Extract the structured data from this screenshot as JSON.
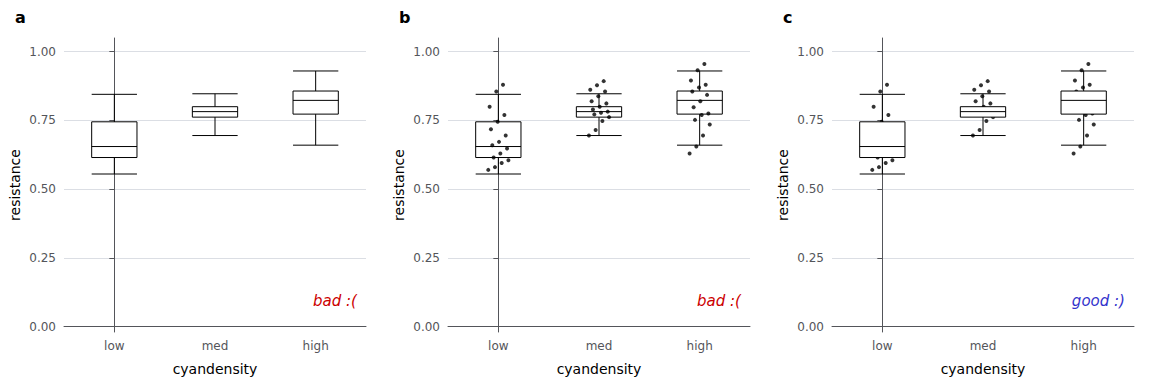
{
  "chart_data": [
    {
      "type": "boxplot",
      "title": "a",
      "categories": [
        "low",
        "med",
        "high"
      ],
      "xlabel": "cyandensity",
      "ylabel": "resistance",
      "ylim": [
        -0.02,
        1.05
      ],
      "yticks": [
        {
          "value": 0.0,
          "label": "0.00"
        },
        {
          "value": 0.25,
          "label": "0.25"
        },
        {
          "value": 0.5,
          "label": "0.50"
        },
        {
          "value": 0.75,
          "label": "0.75"
        },
        {
          "value": 1.0,
          "label": "1.00"
        }
      ],
      "grid": true,
      "series": [
        {
          "type": "boxplot",
          "color": "#ffffff",
          "values": [
            [
              0.555,
              0.615,
              0.655,
              0.745,
              0.845
            ],
            [
              0.695,
              0.762,
              0.782,
              0.8,
              0.847
            ],
            [
              0.66,
              0.773,
              0.823,
              0.857,
              0.93
            ]
          ]
        }
      ],
      "annotations": [
        {
          "text": "bad :(",
          "color": "#cc0000"
        }
      ]
    },
    {
      "type": "boxplot",
      "title": "b",
      "categories": [
        "low",
        "med",
        "high"
      ],
      "xlabel": "cyandensity",
      "ylabel": "resistance",
      "ylim": [
        -0.02,
        1.05
      ],
      "yticks": [
        {
          "value": 0.0,
          "label": "0.00"
        },
        {
          "value": 0.25,
          "label": "0.25"
        },
        {
          "value": 0.5,
          "label": "0.50"
        },
        {
          "value": 0.75,
          "label": "0.75"
        },
        {
          "value": 1.0,
          "label": "1.00"
        }
      ],
      "grid": true,
      "series": [
        {
          "type": "boxplot",
          "color": "#ffffff",
          "values": [
            [
              0.555,
              0.615,
              0.655,
              0.745,
              0.845
            ],
            [
              0.695,
              0.762,
              0.782,
              0.8,
              0.847
            ],
            [
              0.66,
              0.773,
              0.823,
              0.857,
              0.93
            ]
          ]
        },
        {
          "type": "scatter",
          "color": "#000000",
          "values": [
            [
              0.57,
              0.58,
              0.595,
              0.605,
              0.615,
              0.63,
              0.648,
              0.66,
              0.672,
              0.695,
              0.718,
              0.745,
              0.77,
              0.8,
              0.855,
              0.88
            ],
            [
              0.695,
              0.715,
              0.748,
              0.762,
              0.772,
              0.778,
              0.782,
              0.79,
              0.8,
              0.812,
              0.82,
              0.838,
              0.855,
              0.862,
              0.878,
              0.893
            ],
            [
              0.63,
              0.655,
              0.695,
              0.735,
              0.752,
              0.77,
              0.775,
              0.798,
              0.82,
              0.843,
              0.855,
              0.87,
              0.88,
              0.895,
              0.933,
              0.955
            ]
          ]
        }
      ],
      "annotations": [
        {
          "text": "bad :(",
          "color": "#cc0000"
        }
      ]
    },
    {
      "type": "boxplot",
      "title": "c",
      "categories": [
        "low",
        "med",
        "high"
      ],
      "xlabel": "cyandensity",
      "ylabel": "resistance",
      "ylim": [
        -0.02,
        1.05
      ],
      "yticks": [
        {
          "value": 0.0,
          "label": "0.00"
        },
        {
          "value": 0.25,
          "label": "0.25"
        },
        {
          "value": 0.5,
          "label": "0.50"
        },
        {
          "value": 0.75,
          "label": "0.75"
        },
        {
          "value": 1.0,
          "label": "1.00"
        }
      ],
      "grid": true,
      "series": [
        {
          "type": "scatter",
          "color": "#000000",
          "values": [
            [
              0.57,
              0.58,
              0.595,
              0.605,
              0.615,
              0.63,
              0.648,
              0.66,
              0.672,
              0.695,
              0.718,
              0.745,
              0.77,
              0.8,
              0.855,
              0.88
            ],
            [
              0.695,
              0.715,
              0.748,
              0.762,
              0.772,
              0.778,
              0.782,
              0.79,
              0.8,
              0.812,
              0.82,
              0.838,
              0.855,
              0.862,
              0.878,
              0.893
            ],
            [
              0.63,
              0.655,
              0.695,
              0.735,
              0.752,
              0.77,
              0.775,
              0.798,
              0.82,
              0.843,
              0.855,
              0.87,
              0.88,
              0.895,
              0.933,
              0.955
            ]
          ]
        },
        {
          "type": "boxplot",
          "color": "#ffffff",
          "values": [
            [
              0.555,
              0.615,
              0.655,
              0.745,
              0.845
            ],
            [
              0.695,
              0.762,
              0.782,
              0.8,
              0.847
            ],
            [
              0.66,
              0.773,
              0.823,
              0.857,
              0.93
            ]
          ]
        }
      ],
      "annotations": [
        {
          "text": "good :)",
          "color": "#3333cc"
        }
      ]
    }
  ]
}
